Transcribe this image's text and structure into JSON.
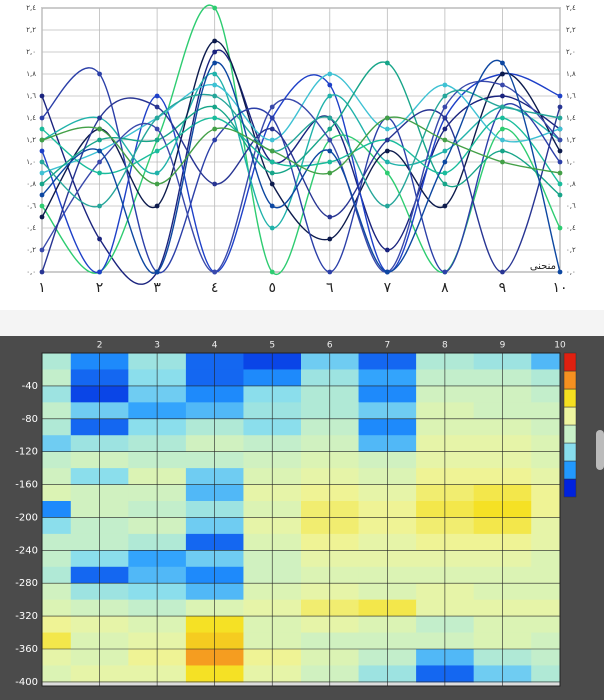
{
  "chart_data": [
    {
      "type": "line",
      "x_label": "منحنى",
      "categories": [
        "١",
        "٢",
        "٣",
        "٤",
        "٥",
        "٦",
        "٧",
        "٨",
        "٩",
        "١٠"
      ],
      "ylim": [
        0,
        2.4
      ],
      "yticks": [
        {
          "value": 0,
          "label": "٠,٠"
        },
        {
          "value": 0.2,
          "label": "٠,٢"
        },
        {
          "value": 0.4,
          "label": "٠,٤"
        },
        {
          "value": 0.6,
          "label": "٠,٦"
        },
        {
          "value": 0.8,
          "label": "٠,٨"
        },
        {
          "value": 1.0,
          "label": "١,٠"
        },
        {
          "value": 1.2,
          "label": "١,٢"
        },
        {
          "value": 1.4,
          "label": "١,٤"
        },
        {
          "value": 1.6,
          "label": "١,٦"
        },
        {
          "value": 1.8,
          "label": "١,٨"
        },
        {
          "value": 2.0,
          "label": "٢,٠"
        },
        {
          "value": 2.2,
          "label": "٢,٢"
        },
        {
          "value": 2.4,
          "label": "٢,٤"
        }
      ],
      "grid": true,
      "series": [
        {
          "color": "#1a237e",
          "values": [
            1.6,
            0.3,
            0.0,
            2.0,
            1.0,
            1.4,
            0.2,
            1.3,
            1.6,
            1.3
          ]
        },
        {
          "color": "#2ecc71",
          "values": [
            0.6,
            0.0,
            1.2,
            2.4,
            0.0,
            1.2,
            0.9,
            0.0,
            1.3,
            0.4
          ]
        },
        {
          "color": "#1e40c8",
          "values": [
            1.1,
            0.0,
            1.6,
            0.0,
            1.4,
            1.7,
            0.0,
            1.4,
            1.8,
            1.6
          ]
        },
        {
          "color": "#20b2aa",
          "values": [
            1.2,
            1.4,
            0.9,
            1.8,
            0.4,
            1.6,
            1.0,
            1.1,
            1.5,
            1.2
          ]
        },
        {
          "color": "#0d1b4d",
          "values": [
            0.5,
            1.3,
            0.6,
            2.1,
            0.8,
            0.3,
            1.1,
            0.6,
            1.8,
            1.1
          ]
        },
        {
          "color": "#3ec1d3",
          "values": [
            0.9,
            1.1,
            1.4,
            1.7,
            1.2,
            1.8,
            1.3,
            1.7,
            1.2,
            1.3
          ]
        },
        {
          "color": "#2b3fa8",
          "values": [
            1.4,
            1.8,
            0.0,
            1.2,
            1.4,
            0.0,
            1.4,
            0.0,
            1.5,
            1.0
          ]
        },
        {
          "color": "#17a589",
          "values": [
            0.8,
            1.2,
            1.2,
            1.5,
            0.9,
            1.3,
            1.9,
            0.8,
            1.1,
            0.7
          ]
        },
        {
          "color": "#3949ab",
          "values": [
            0.2,
            1.0,
            1.3,
            0.0,
            1.5,
            1.2,
            0.0,
            1.5,
            1.7,
            1.2
          ]
        },
        {
          "color": "#1abc9c",
          "values": [
            1.3,
            0.9,
            1.1,
            1.4,
            1.0,
            1.0,
            1.2,
            0.9,
            1.4,
            0.8
          ]
        },
        {
          "color": "#283593",
          "values": [
            0.0,
            1.4,
            1.5,
            0.8,
            1.3,
            0.5,
            1.2,
            1.4,
            0.0,
            1.5
          ]
        },
        {
          "color": "#26a69a",
          "values": [
            1.0,
            0.6,
            1.4,
            1.6,
            1.1,
            1.4,
            0.6,
            1.6,
            1.5,
            1.4
          ]
        },
        {
          "color": "#0d47a1",
          "values": [
            0.7,
            1.1,
            0.0,
            1.9,
            0.6,
            1.1,
            0.0,
            1.0,
            1.9,
            0.0
          ]
        },
        {
          "color": "#43a047",
          "values": [
            1.2,
            1.3,
            0.8,
            1.3,
            1.1,
            0.9,
            1.4,
            1.2,
            1.0,
            0.9
          ]
        }
      ]
    },
    {
      "type": "contour",
      "x": [
        1,
        2,
        3,
        4,
        5,
        6,
        7,
        8,
        9,
        10
      ],
      "y": [
        -10,
        -30,
        -50,
        -70,
        -90,
        -110,
        -130,
        -150,
        -170,
        -190,
        -210,
        -230,
        -250,
        -270,
        -290,
        -310,
        -330,
        -350,
        -370,
        -390
      ],
      "xlim": [
        1,
        10
      ],
      "ylim": [
        -405,
        0
      ],
      "xticks": [
        2,
        3,
        4,
        5,
        6,
        7,
        8,
        9,
        10
      ],
      "yticks": [
        -40,
        -80,
        -120,
        -160,
        -200,
        -240,
        -280,
        -320,
        -360,
        -400
      ],
      "grid": true,
      "zlim": [
        0,
        2.4
      ],
      "colorscale": [
        "#0022dd",
        "#2299ff",
        "#88ddee",
        "#c8f0c8",
        "#eef5a0",
        "#f5e020",
        "#f59020",
        "#e02010"
      ],
      "z": [
        [
          0.9,
          0.3,
          0.8,
          0.2,
          0.1,
          0.6,
          0.2,
          0.9,
          0.8,
          0.5
        ],
        [
          1.0,
          0.2,
          0.7,
          0.2,
          0.3,
          0.8,
          0.4,
          1.0,
          1.0,
          0.9
        ],
        [
          0.8,
          0.1,
          0.6,
          0.3,
          0.7,
          0.9,
          0.3,
          1.1,
          1.1,
          1.0
        ],
        [
          1.0,
          0.6,
          0.4,
          0.5,
          0.8,
          0.9,
          0.6,
          1.2,
          1.1,
          1.1
        ],
        [
          0.9,
          0.2,
          0.7,
          0.9,
          0.7,
          1.0,
          0.3,
          1.2,
          1.2,
          1.1
        ],
        [
          0.6,
          0.8,
          0.9,
          1.1,
          1.0,
          1.1,
          0.5,
          1.3,
          1.3,
          1.2
        ],
        [
          1.0,
          1.1,
          1.0,
          1.0,
          1.1,
          1.2,
          1.1,
          1.3,
          1.3,
          1.2
        ],
        [
          1.1,
          0.7,
          1.2,
          0.6,
          1.2,
          1.3,
          1.2,
          1.4,
          1.4,
          1.3
        ],
        [
          1.2,
          1.1,
          1.1,
          0.5,
          1.3,
          1.4,
          1.3,
          1.5,
          1.6,
          1.4
        ],
        [
          0.3,
          1.1,
          1.0,
          0.8,
          1.2,
          1.5,
          1.4,
          1.6,
          1.7,
          1.4
        ],
        [
          0.7,
          1.0,
          1.1,
          0.6,
          1.3,
          1.5,
          1.4,
          1.5,
          1.6,
          1.3
        ],
        [
          1.0,
          1.0,
          0.9,
          0.2,
          1.2,
          1.4,
          1.3,
          1.4,
          1.4,
          1.3
        ],
        [
          1.0,
          0.7,
          0.4,
          0.6,
          1.1,
          1.3,
          1.3,
          1.3,
          1.3,
          1.2
        ],
        [
          0.9,
          0.2,
          0.5,
          0.3,
          1.1,
          1.2,
          1.2,
          1.2,
          1.2,
          1.2
        ],
        [
          1.1,
          0.8,
          0.7,
          0.5,
          1.2,
          1.3,
          1.2,
          1.3,
          1.2,
          1.2
        ],
        [
          1.2,
          1.1,
          1.0,
          1.2,
          1.3,
          1.5,
          1.6,
          1.3,
          1.3,
          1.3
        ],
        [
          1.4,
          1.3,
          1.2,
          1.7,
          1.2,
          1.3,
          1.2,
          1.0,
          1.2,
          1.2
        ],
        [
          1.6,
          1.2,
          1.3,
          1.8,
          1.2,
          1.1,
          1.1,
          1.1,
          1.2,
          1.1
        ],
        [
          1.3,
          1.2,
          1.4,
          2.0,
          1.4,
          1.2,
          1.0,
          0.5,
          0.9,
          1.0
        ],
        [
          1.2,
          1.3,
          1.3,
          1.7,
          1.3,
          1.1,
          0.8,
          0.2,
          0.6,
          0.9
        ]
      ]
    }
  ]
}
